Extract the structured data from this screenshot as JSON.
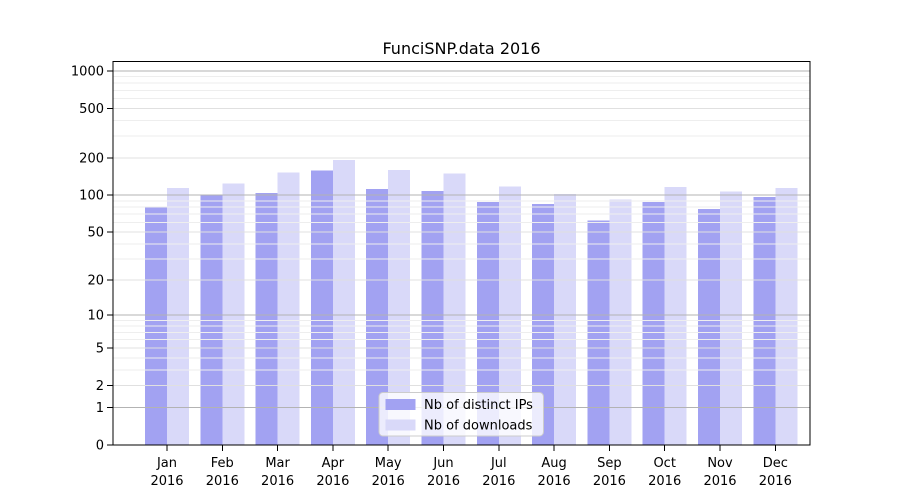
{
  "chart_data": {
    "type": "bar",
    "title": "FunciSNP.data 2016",
    "categories": [
      "Jan 2016",
      "Feb 2016",
      "Mar 2016",
      "Apr 2016",
      "May 2016",
      "Jun 2016",
      "Jul 2016",
      "Aug 2016",
      "Sep 2016",
      "Oct 2016",
      "Nov 2016",
      "Dec 2016"
    ],
    "series": [
      {
        "name": "Nb of distinct IPs",
        "color": "#a2a2f2",
        "values": [
          80,
          101,
          104,
          158,
          112,
          108,
          88,
          85,
          62,
          88,
          77,
          97
        ]
      },
      {
        "name": "Nb of downloads",
        "color": "#d9d9f9",
        "values": [
          114,
          124,
          152,
          192,
          160,
          150,
          118,
          102,
          92,
          116,
          107,
          114
        ]
      }
    ],
    "y_scale": "log1p",
    "ylim": [
      0,
      1000
    ],
    "y_ticks": [
      0,
      1,
      2,
      5,
      10,
      20,
      50,
      100,
      200,
      500,
      1000
    ],
    "y_major_gridlines": [
      1,
      10,
      100,
      1000
    ],
    "grid": true,
    "legend_position": "bottom-center",
    "colors": {
      "axis": "#000000",
      "major_gridline": "#b3b3b3",
      "mid_gridline": "#e0e0e0",
      "minor_gridline": "#eeeeee",
      "legend_border": "#cccccc",
      "legend_background": "#ffffff",
      "text": "#000000"
    }
  }
}
